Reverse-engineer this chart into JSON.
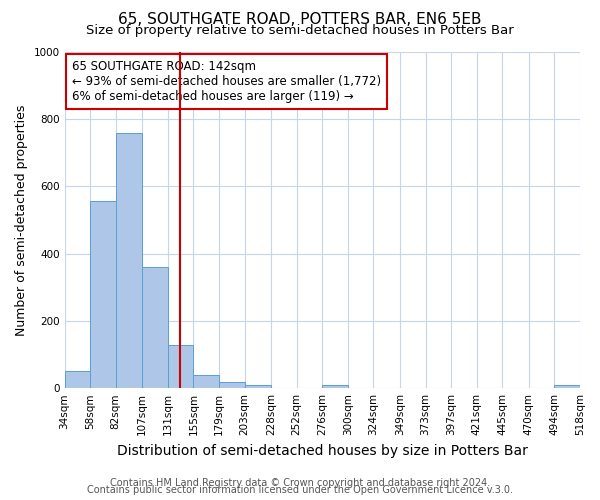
{
  "title1": "65, SOUTHGATE ROAD, POTTERS BAR, EN6 5EB",
  "title2": "Size of property relative to semi-detached houses in Potters Bar",
  "xlabel": "Distribution of semi-detached houses by size in Potters Bar",
  "ylabel": "Number of semi-detached properties",
  "bar_edges": [
    34,
    58,
    82,
    107,
    131,
    155,
    179,
    203,
    228,
    252,
    276,
    300,
    324,
    349,
    373,
    397,
    421,
    445,
    470,
    494,
    518
  ],
  "bar_heights": [
    50,
    555,
    758,
    360,
    128,
    40,
    18,
    8,
    0,
    0,
    8,
    0,
    0,
    0,
    0,
    0,
    0,
    0,
    0,
    8
  ],
  "bar_color": "#aec6e8",
  "bar_edge_color": "#5a9fd4",
  "property_size": 142,
  "vline_color": "#cc0000",
  "annotation_text_line1": "65 SOUTHGATE ROAD: 142sqm",
  "annotation_text_line2": "← 93% of semi-detached houses are smaller (1,772)",
  "annotation_text_line3": "6% of semi-detached houses are larger (119) →",
  "annotation_box_color": "#ffffff",
  "annotation_box_edge_color": "#cc0000",
  "ylim": [
    0,
    1000
  ],
  "tick_labels": [
    "34sqm",
    "58sqm",
    "82sqm",
    "107sqm",
    "131sqm",
    "155sqm",
    "179sqm",
    "203sqm",
    "228sqm",
    "252sqm",
    "276sqm",
    "300sqm",
    "324sqm",
    "349sqm",
    "373sqm",
    "397sqm",
    "421sqm",
    "445sqm",
    "470sqm",
    "494sqm",
    "518sqm"
  ],
  "footer_line1": "Contains HM Land Registry data © Crown copyright and database right 2024.",
  "footer_line2": "Contains public sector information licensed under the Open Government Licence v.3.0.",
  "bg_color": "#ffffff",
  "grid_color": "#c8d4e8",
  "title1_fontsize": 11,
  "title2_fontsize": 9.5,
  "ylabel_fontsize": 9,
  "xlabel_fontsize": 10,
  "tick_fontsize": 7.5,
  "footer_fontsize": 7,
  "ann_fontsize": 8.5
}
